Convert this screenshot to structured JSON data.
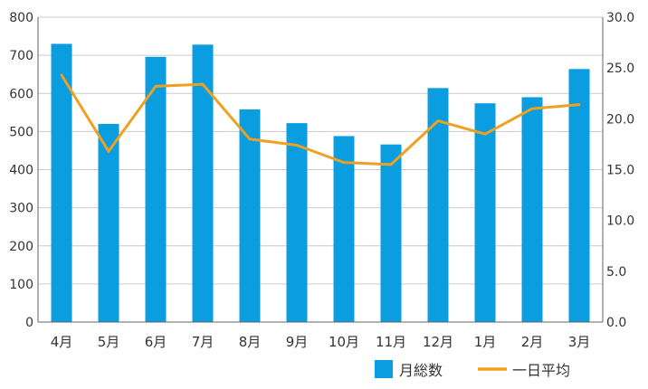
{
  "chart_data": {
    "type": "bar",
    "categories": [
      "4月",
      "5月",
      "6月",
      "7月",
      "8月",
      "9月",
      "10月",
      "11月",
      "12月",
      "1月",
      "2月",
      "3月"
    ],
    "series": [
      {
        "name": "月総数",
        "type": "bar",
        "axis": "left",
        "color": "#0a9ee0",
        "values": [
          730,
          520,
          696,
          728,
          558,
          522,
          488,
          466,
          614,
          574,
          590,
          664
        ]
      },
      {
        "name": "一日平均",
        "type": "line",
        "axis": "right",
        "color": "#f0a020",
        "values": [
          24.3,
          16.8,
          23.2,
          23.4,
          18.0,
          17.4,
          15.7,
          15.5,
          19.8,
          18.5,
          21.0,
          21.4
        ]
      }
    ],
    "y_left": {
      "lim": [
        0,
        800
      ],
      "ticks": [
        "0",
        "100",
        "200",
        "300",
        "400",
        "500",
        "600",
        "700",
        "800"
      ]
    },
    "y_right": {
      "lim": [
        0,
        30
      ],
      "ticks": [
        "0.0",
        "5.0",
        "10.0",
        "15.0",
        "20.0",
        "25.0",
        "30.0"
      ]
    },
    "grid": true,
    "legend": "bottom-right",
    "title": "",
    "xlabel": "",
    "ylabel": ""
  }
}
